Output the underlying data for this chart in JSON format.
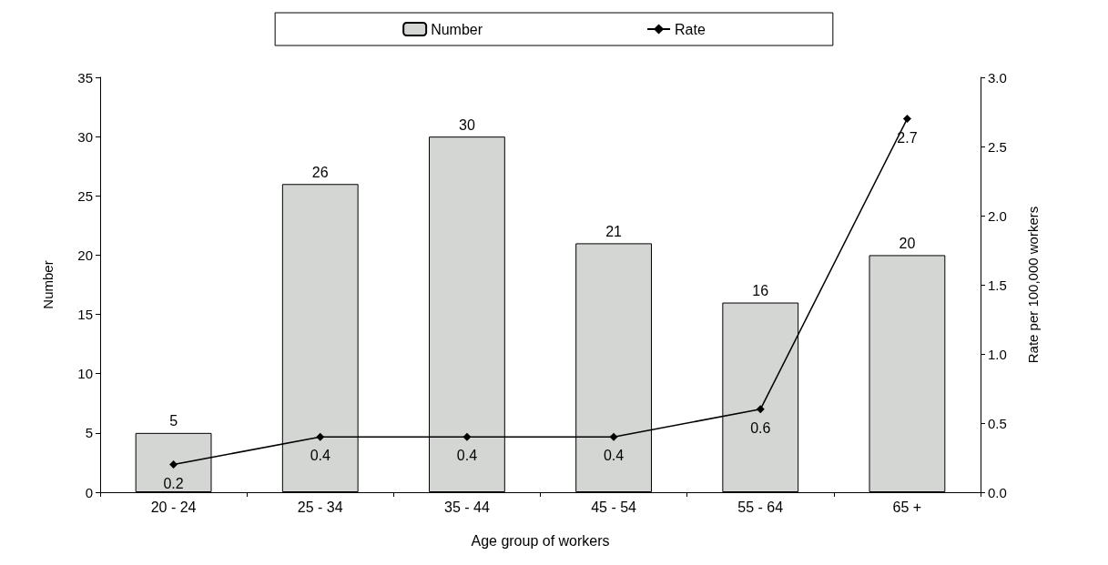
{
  "chart_data": {
    "type": "bar",
    "xlabel": "Age group of workers",
    "ylabel": "Number",
    "y2label": "Rate per 100,000 workers",
    "categories": [
      "20 - 24",
      "25 - 34",
      "35 - 44",
      "45 - 54",
      "55 - 64",
      "65 +"
    ],
    "series": [
      {
        "name": "Number",
        "color": "#d3d6d3",
        "values": [
          5,
          26,
          30,
          21,
          16,
          20
        ]
      },
      {
        "name": "Rate",
        "type": "line",
        "axis": "y2",
        "color": "#000000",
        "marker": "diamond",
        "values": [
          0.2,
          0.4,
          0.4,
          0.4,
          0.6,
          2.7
        ]
      }
    ],
    "ylim": [
      0,
      35
    ],
    "yticks": [
      0,
      5,
      10,
      15,
      20,
      25,
      30,
      35
    ],
    "y2lim": [
      0,
      3
    ],
    "y2ticks": [
      {
        "value": 0,
        "label": "0.0"
      },
      {
        "value": 0.5,
        "label": "0.5"
      },
      {
        "value": 1,
        "label": "1.0"
      },
      {
        "value": 1.5,
        "label": "1.5"
      },
      {
        "value": 2,
        "label": "2.0"
      },
      {
        "value": 2.5,
        "label": "2.5"
      },
      {
        "value": 3,
        "label": "3.0"
      }
    ],
    "data_labels": true,
    "legend": "top",
    "grid": false
  }
}
